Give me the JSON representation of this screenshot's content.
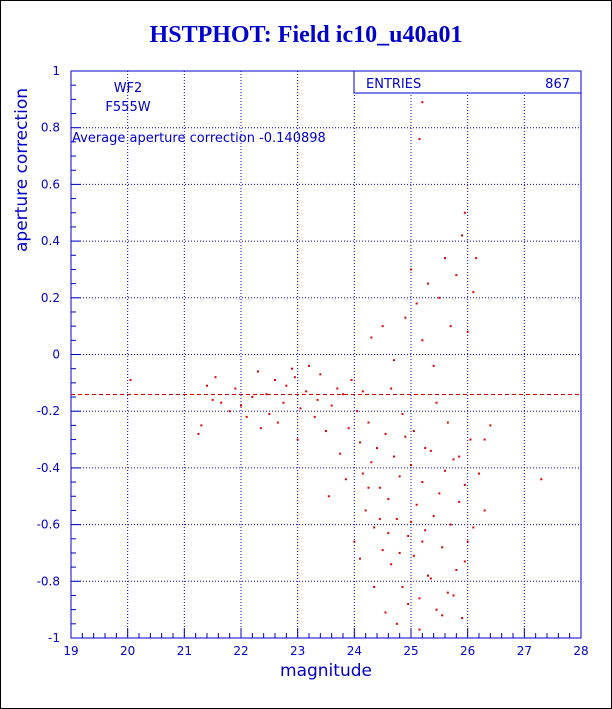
{
  "title": "HSTPHOT: Field ic10_u40a01",
  "colors": {
    "axis": "#0000cc",
    "points": "#dd0000",
    "grid": "#0000cc",
    "title": "#0000cc"
  },
  "chart_data": {
    "type": "scatter",
    "xlabel": "magnitude",
    "ylabel": "aperture correction",
    "xlim": [
      19,
      28
    ],
    "ylim": [
      -1,
      1
    ],
    "xticks": [
      "19",
      "20",
      "21",
      "22",
      "23",
      "24",
      "25",
      "26",
      "27",
      "28"
    ],
    "yticks": [
      "-1",
      "-0.8",
      "-0.6",
      "-0.4",
      "-0.2",
      "0",
      "0.2",
      "0.4",
      "0.6",
      "0.8",
      "1"
    ],
    "grid": true,
    "camera": "WF2",
    "filter": "F555W",
    "average_text": "Average aperture correction -0.140898",
    "average_value": -0.140898,
    "stats": {
      "label": "ENTRIES",
      "value": "867"
    },
    "points": [
      [
        20.05,
        -0.09
      ],
      [
        21.25,
        -0.28
      ],
      [
        21.3,
        -0.25
      ],
      [
        21.4,
        -0.11
      ],
      [
        21.5,
        -0.16
      ],
      [
        21.55,
        -0.08
      ],
      [
        21.65,
        -0.17
      ],
      [
        21.8,
        -0.2
      ],
      [
        21.9,
        -0.12
      ],
      [
        22.0,
        -0.18
      ],
      [
        22.1,
        -0.22
      ],
      [
        22.2,
        -0.15
      ],
      [
        22.3,
        -0.06
      ],
      [
        22.35,
        -0.26
      ],
      [
        22.45,
        -0.14
      ],
      [
        22.5,
        -0.21
      ],
      [
        22.6,
        -0.09
      ],
      [
        22.65,
        -0.24
      ],
      [
        22.75,
        -0.17
      ],
      [
        22.8,
        -0.11
      ],
      [
        22.9,
        -0.05
      ],
      [
        22.95,
        -0.08
      ],
      [
        23.0,
        -0.3
      ],
      [
        23.05,
        -0.19
      ],
      [
        23.15,
        -0.13
      ],
      [
        23.2,
        -0.04
      ],
      [
        23.3,
        -0.22
      ],
      [
        23.35,
        -0.16
      ],
      [
        23.4,
        -0.07
      ],
      [
        23.5,
        -0.27
      ],
      [
        23.55,
        -0.5
      ],
      [
        23.6,
        -0.18
      ],
      [
        23.7,
        -0.12
      ],
      [
        23.75,
        -0.35
      ],
      [
        23.8,
        -0.14
      ],
      [
        23.85,
        -0.44
      ],
      [
        23.9,
        -0.26
      ],
      [
        23.95,
        -0.09
      ],
      [
        24.0,
        -0.66
      ],
      [
        24.05,
        -0.2
      ],
      [
        24.1,
        -0.31
      ],
      [
        24.15,
        -0.42
      ],
      [
        24.2,
        -0.55
      ],
      [
        24.25,
        -0.24
      ],
      [
        24.3,
        -0.38
      ],
      [
        24.35,
        -0.61
      ],
      [
        24.4,
        -0.33
      ],
      [
        24.45,
        -0.47
      ],
      [
        24.5,
        -0.69
      ],
      [
        24.55,
        -0.28
      ],
      [
        24.6,
        -0.51
      ],
      [
        24.65,
        -0.74
      ],
      [
        24.7,
        -0.36
      ],
      [
        24.75,
        -0.58
      ],
      [
        24.8,
        -0.43
      ],
      [
        24.85,
        -0.82
      ],
      [
        24.9,
        -0.29
      ],
      [
        24.95,
        -0.64
      ],
      [
        25.0,
        -0.39
      ],
      [
        25.05,
        -0.71
      ],
      [
        25.1,
        -0.53
      ],
      [
        25.15,
        -0.86
      ],
      [
        25.2,
        -0.45
      ],
      [
        25.25,
        -0.62
      ],
      [
        25.3,
        -0.78
      ],
      [
        25.35,
        -0.34
      ],
      [
        25.4,
        -0.57
      ],
      [
        25.45,
        -0.9
      ],
      [
        25.5,
        -0.49
      ],
      [
        25.55,
        -0.68
      ],
      [
        25.6,
        -0.41
      ],
      [
        25.65,
        -0.84
      ],
      [
        25.7,
        -0.6
      ],
      [
        25.75,
        -0.37
      ],
      [
        25.8,
        -0.76
      ],
      [
        25.85,
        -0.52
      ],
      [
        25.9,
        -0.93
      ],
      [
        25.95,
        -0.46
      ],
      [
        26.0,
        -0.66
      ],
      [
        26.05,
        -0.3
      ],
      [
        24.3,
        0.06
      ],
      [
        24.5,
        0.1
      ],
      [
        24.7,
        -0.02
      ],
      [
        24.9,
        0.13
      ],
      [
        25.0,
        0.3
      ],
      [
        25.1,
        0.18
      ],
      [
        25.2,
        0.05
      ],
      [
        25.3,
        0.25
      ],
      [
        25.4,
        -0.04
      ],
      [
        25.5,
        0.2
      ],
      [
        25.6,
        0.34
      ],
      [
        25.7,
        0.1
      ],
      [
        25.8,
        0.28
      ],
      [
        25.9,
        0.42
      ],
      [
        26.0,
        0.08
      ],
      [
        26.1,
        0.22
      ],
      [
        25.95,
        0.5
      ],
      [
        25.15,
        0.76
      ],
      [
        25.2,
        0.89
      ],
      [
        26.15,
        0.34
      ],
      [
        26.3,
        -0.3
      ],
      [
        26.4,
        -0.25
      ],
      [
        26.2,
        -0.42
      ],
      [
        27.3,
        -0.44
      ],
      [
        26.1,
        -0.61
      ],
      [
        26.3,
        -0.55
      ],
      [
        24.15,
        -0.13
      ],
      [
        24.25,
        -0.47
      ],
      [
        24.45,
        -0.58
      ],
      [
        24.65,
        -0.12
      ],
      [
        24.85,
        -0.21
      ],
      [
        25.05,
        -0.27
      ],
      [
        25.25,
        -0.33
      ],
      [
        25.45,
        -0.17
      ],
      [
        25.65,
        -0.24
      ],
      [
        25.85,
        -0.36
      ],
      [
        24.35,
        -0.82
      ],
      [
        24.55,
        -0.91
      ],
      [
        24.75,
        -0.95
      ],
      [
        24.95,
        -0.88
      ],
      [
        25.15,
        -0.97
      ],
      [
        25.35,
        -0.79
      ],
      [
        25.55,
        -0.92
      ],
      [
        25.75,
        -0.85
      ],
      [
        25.95,
        -0.73
      ],
      [
        24.1,
        -0.72
      ],
      [
        24.6,
        -0.63
      ],
      [
        24.8,
        -0.7
      ],
      [
        25.0,
        -0.59
      ],
      [
        25.2,
        -0.66
      ]
    ]
  }
}
